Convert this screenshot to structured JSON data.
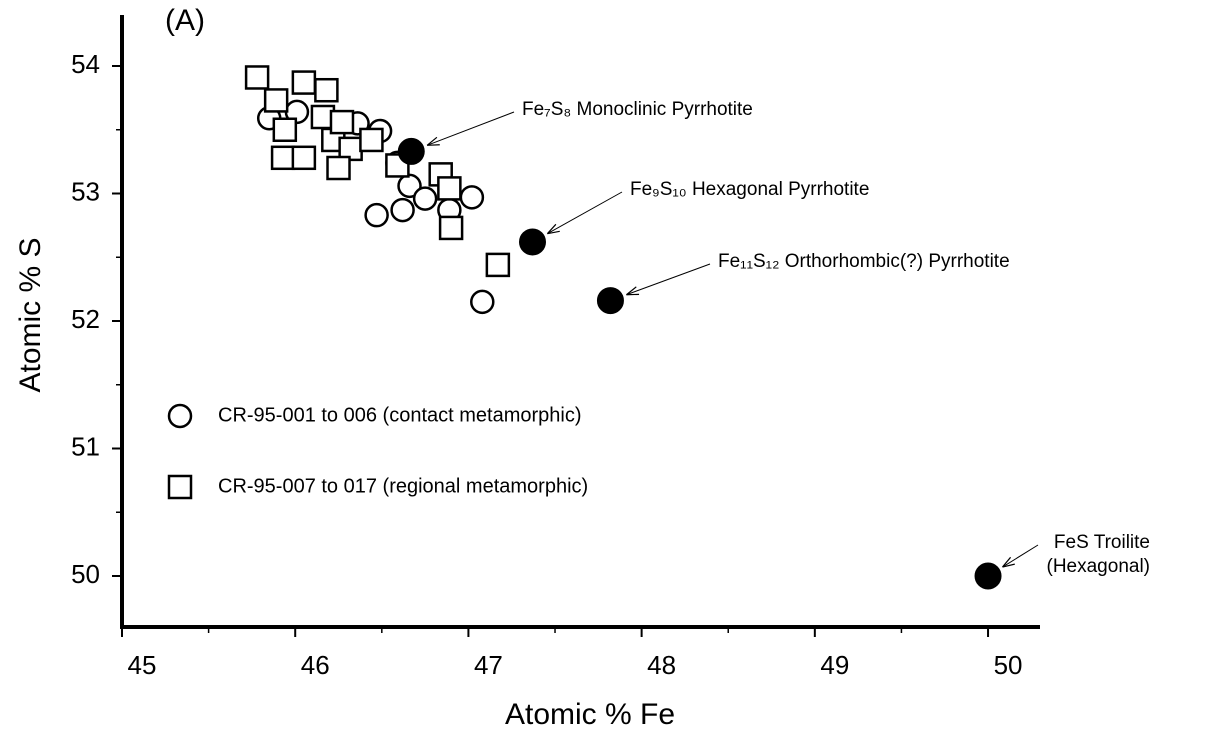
{
  "chart_data": {
    "type": "scatter",
    "panel_label": "(A)",
    "xlabel": "Atomic % Fe",
    "ylabel": "Atomic % S",
    "xlim": [
      45,
      50.3
    ],
    "ylim": [
      49.6,
      54.4
    ],
    "xticks": [
      45,
      46,
      47,
      48,
      49,
      50
    ],
    "yticks": [
      50,
      51,
      52,
      53,
      54
    ],
    "xminorticks": [
      45.5,
      46.5,
      47.5,
      48.5,
      49.5
    ],
    "yminorticks": [
      50.5,
      51.5,
      52.5,
      53.5
    ],
    "series": [
      {
        "name": "CR-95-001 to 006 (contact metamorphic)",
        "marker": "circle",
        "color": "#000000",
        "x": [
          45.85,
          46.01,
          46.36,
          46.49,
          46.59,
          46.66,
          46.47,
          46.62,
          46.75,
          46.89,
          47.02,
          47.08
        ],
        "values": [
          53.59,
          53.64,
          53.55,
          53.49,
          53.24,
          53.06,
          52.83,
          52.87,
          52.96,
          52.87,
          52.97,
          52.15
        ]
      },
      {
        "name": "CR-95-007 to 017 (regional metamorphic)",
        "marker": "square",
        "color": "#000000",
        "x": [
          45.78,
          45.89,
          45.94,
          45.93,
          46.05,
          46.05,
          46.18,
          46.16,
          46.22,
          46.27,
          46.32,
          46.25,
          46.44,
          46.59,
          46.84,
          46.89,
          46.9,
          47.17
        ],
        "values": [
          53.91,
          53.73,
          53.5,
          53.28,
          53.87,
          53.28,
          53.81,
          53.6,
          53.42,
          53.56,
          53.35,
          53.2,
          53.42,
          53.22,
          53.15,
          53.04,
          52.73,
          52.44
        ]
      },
      {
        "marker": "filled-circle",
        "color": "#000000",
        "x": [
          46.67,
          47.37,
          47.82,
          50
        ],
        "values": [
          53.33,
          52.62,
          52.16,
          50
        ]
      }
    ],
    "annotations": [
      {
        "lines": [
          "Fe₇S₈  Monoclinic Pyrrhotite"
        ]
      },
      {
        "lines": [
          "Fe₉S₁₀ Hexagonal Pyrrhotite"
        ]
      },
      {
        "lines": [
          "Fe₁₁S₁₂ Orthorhombic(?) Pyrrhotite"
        ]
      },
      {
        "lines": [
          "FeS Troilite",
          "(Hexagonal)"
        ]
      }
    ]
  }
}
